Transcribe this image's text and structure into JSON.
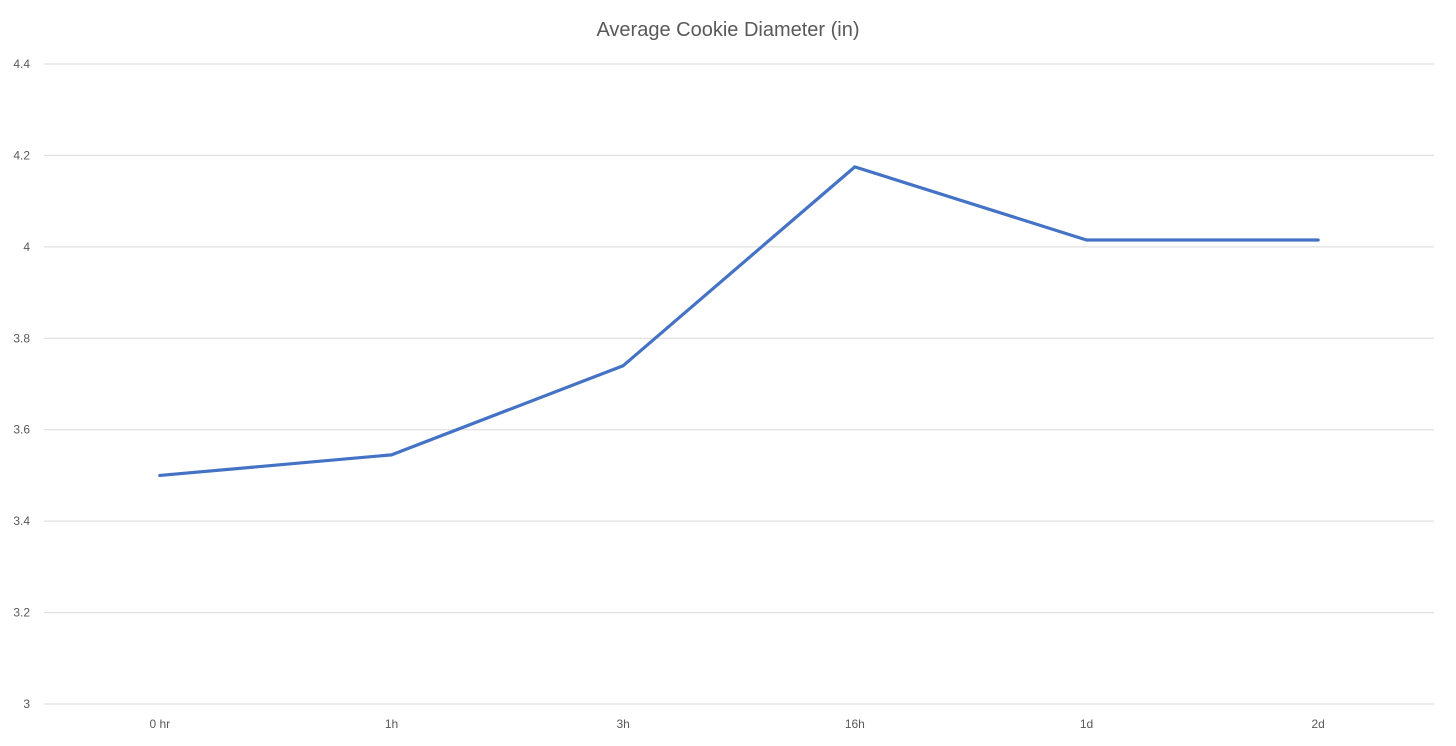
{
  "chart_data": {
    "type": "line",
    "title": "Average Cookie Diameter (in)",
    "xlabel": "",
    "ylabel": "",
    "categories": [
      "0 hr",
      "1h",
      "3h",
      "16h",
      "1d",
      "2d"
    ],
    "series": [
      {
        "values": [
          3.5,
          3.545,
          3.74,
          4.175,
          4.015,
          4.015
        ],
        "color": "#4472c4"
      }
    ],
    "ylim": [
      3,
      4.4
    ],
    "yticks": [
      3,
      3.2,
      3.4,
      3.6,
      3.8,
      4,
      4.2,
      4.4
    ],
    "ytick_labels": [
      "3",
      "3.2",
      "3.4",
      "3.6",
      "3.8",
      "4",
      "4.2",
      "4.4"
    ],
    "grid": true,
    "legend": "none"
  }
}
